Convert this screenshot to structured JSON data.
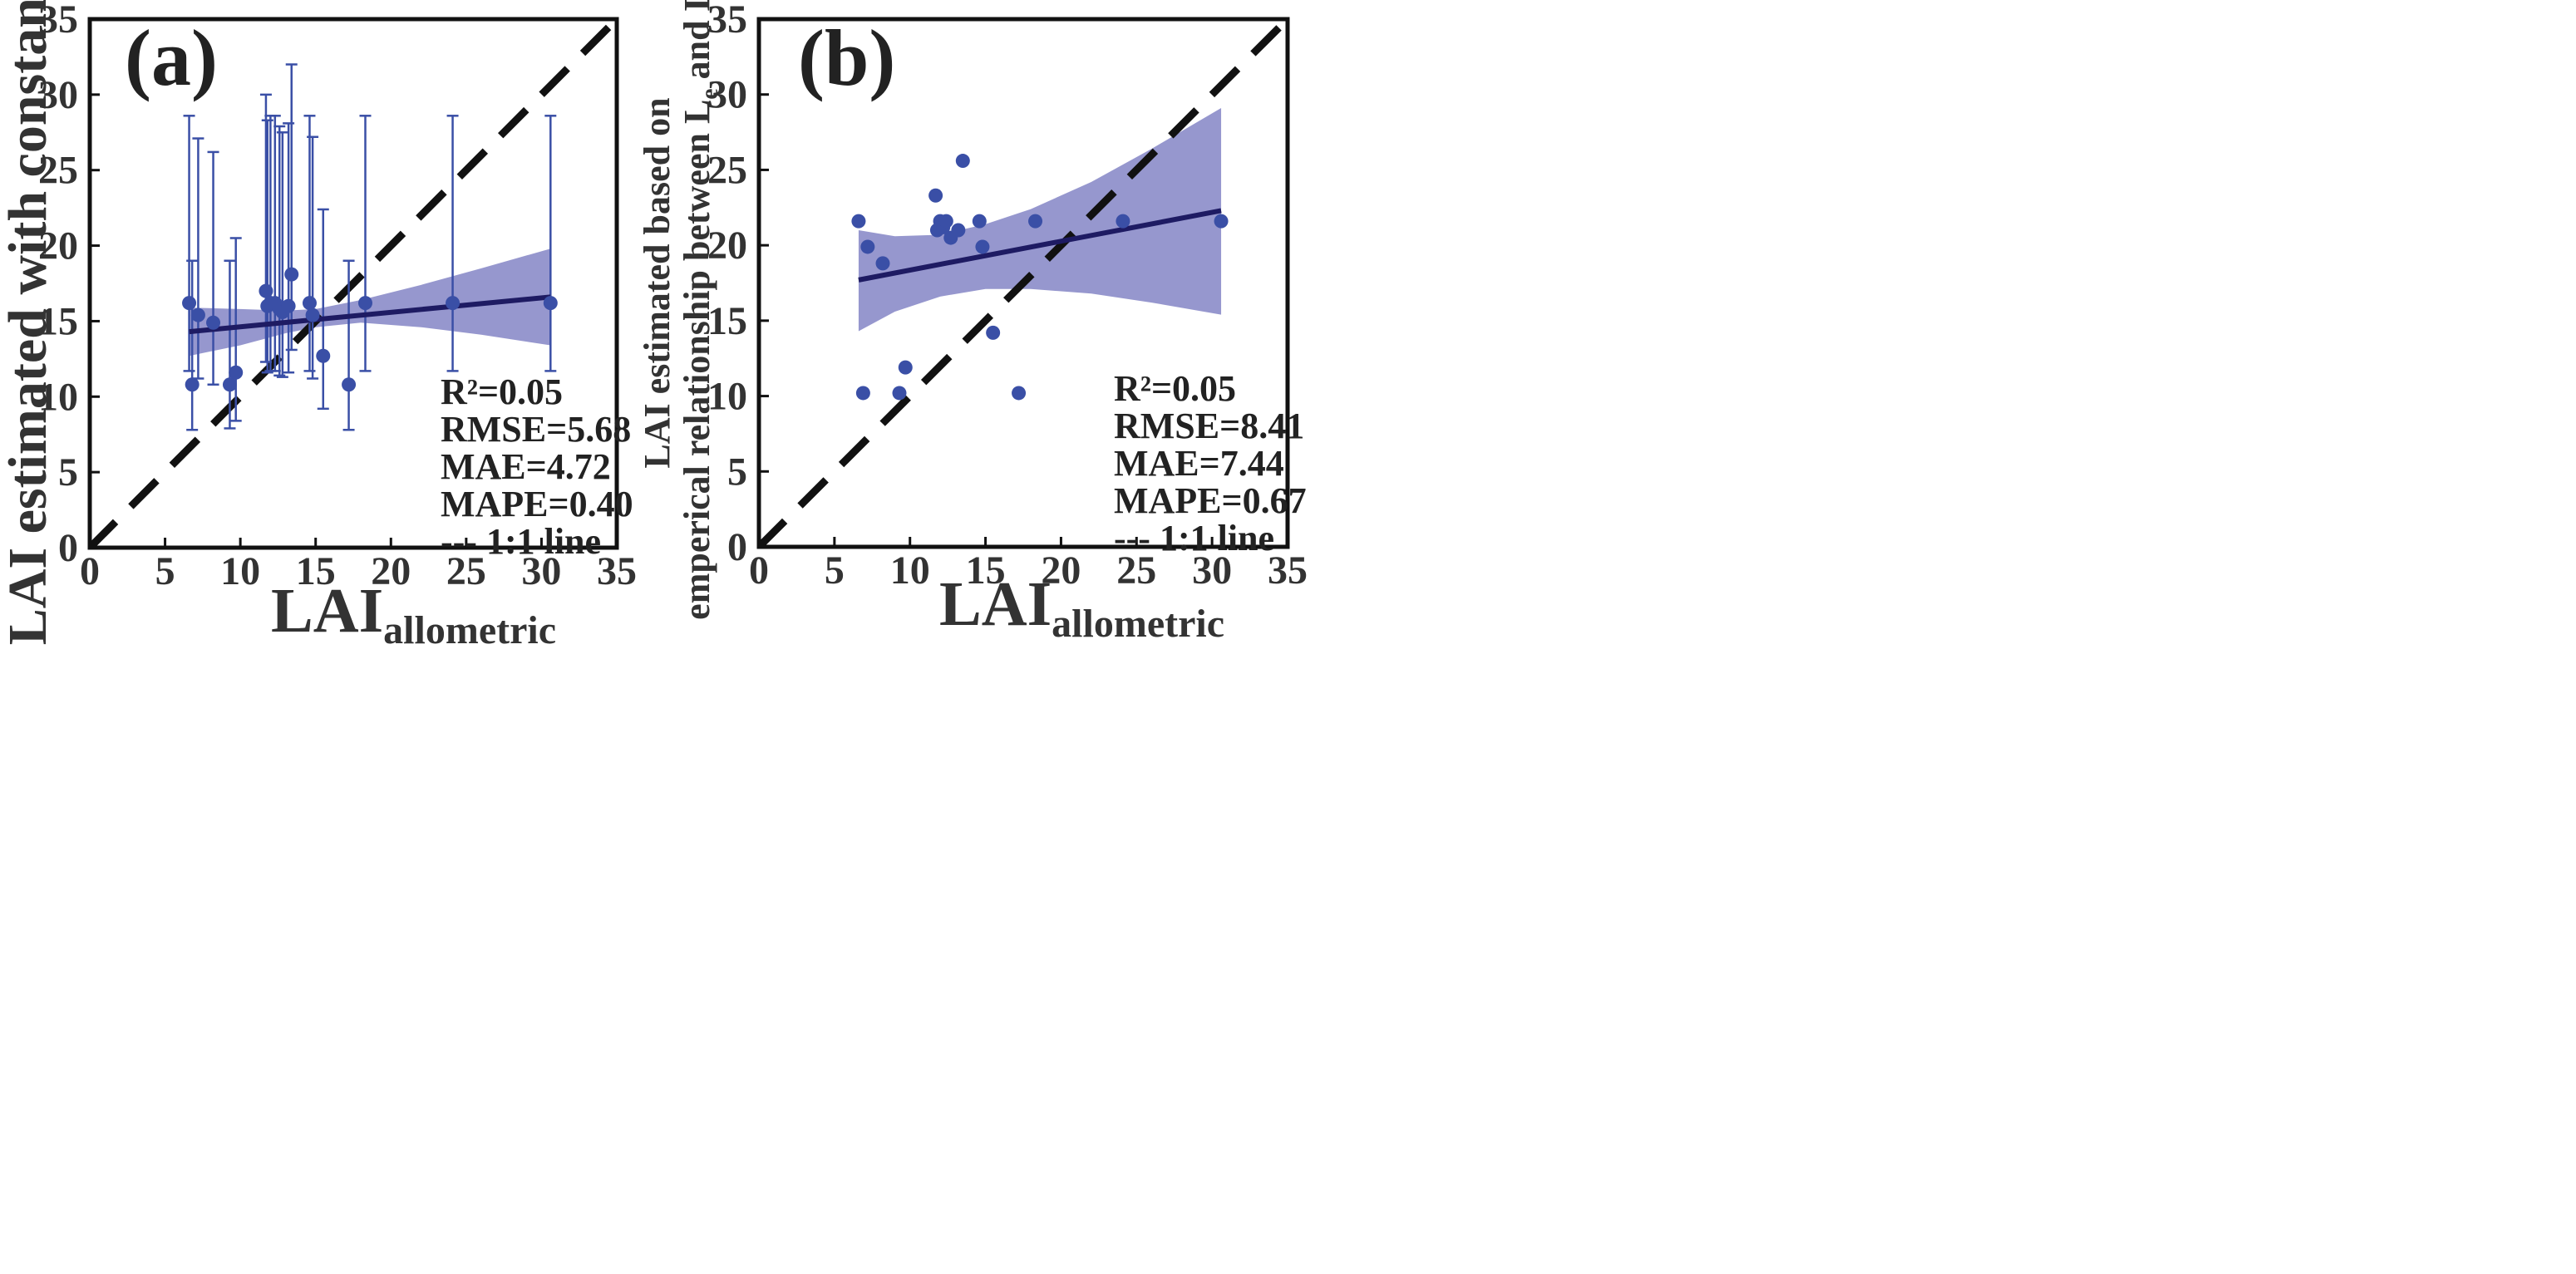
{
  "colors": {
    "point": "#3a4fa6",
    "error_bar": "#3a4fa6",
    "fit_line": "#1e1b63",
    "band": "#8b8cc9",
    "one_to_one": "#111111",
    "frame": "#111111"
  },
  "chart_data": [
    {
      "type": "scatter",
      "panel_label": "(a)",
      "xlabel_main": "LAI",
      "xlabel_sub": "allometric",
      "ylabel_lines": [
        "LAI estimated with constant Ω"
      ],
      "xlim": [
        0,
        35
      ],
      "ylim": [
        0,
        35
      ],
      "xticks": [
        "0",
        "5",
        "10",
        "15",
        "20",
        "25",
        "30",
        "35"
      ],
      "yticks": [
        "0",
        "5",
        "10",
        "15",
        "20",
        "25",
        "30",
        "35"
      ],
      "points": [
        {
          "x": 6.6,
          "y": 16.2,
          "err_low": 11.7,
          "err_high": 28.6
        },
        {
          "x": 6.8,
          "y": 10.8,
          "err_low": 7.8,
          "err_high": 19.0
        },
        {
          "x": 7.2,
          "y": 15.4,
          "err_low": 11.2,
          "err_high": 27.1
        },
        {
          "x": 8.2,
          "y": 14.9,
          "err_low": 10.8,
          "err_high": 26.2
        },
        {
          "x": 9.3,
          "y": 10.8,
          "err_low": 7.9,
          "err_high": 19.0
        },
        {
          "x": 9.7,
          "y": 11.6,
          "err_low": 8.4,
          "err_high": 20.5
        },
        {
          "x": 11.7,
          "y": 17.0,
          "err_low": 12.3,
          "err_high": 30.0
        },
        {
          "x": 11.8,
          "y": 16.0,
          "err_low": 11.6,
          "err_high": 28.3
        },
        {
          "x": 12.0,
          "y": 16.2,
          "err_low": 11.7,
          "err_high": 28.6
        },
        {
          "x": 12.3,
          "y": 16.2,
          "err_low": 11.7,
          "err_high": 28.6
        },
        {
          "x": 12.6,
          "y": 15.8,
          "err_low": 11.4,
          "err_high": 27.9
        },
        {
          "x": 12.8,
          "y": 15.6,
          "err_low": 11.3,
          "err_high": 27.5
        },
        {
          "x": 13.2,
          "y": 16.0,
          "err_low": 11.6,
          "err_high": 28.1
        },
        {
          "x": 13.4,
          "y": 18.1,
          "err_low": 13.1,
          "err_high": 32.0
        },
        {
          "x": 14.6,
          "y": 16.2,
          "err_low": 11.7,
          "err_high": 28.6
        },
        {
          "x": 14.8,
          "y": 15.4,
          "err_low": 11.2,
          "err_high": 27.2
        },
        {
          "x": 15.5,
          "y": 12.7,
          "err_low": 9.2,
          "err_high": 22.4
        },
        {
          "x": 17.2,
          "y": 10.8,
          "err_low": 7.8,
          "err_high": 19.0
        },
        {
          "x": 18.3,
          "y": 16.2,
          "err_low": 11.7,
          "err_high": 28.6
        },
        {
          "x": 24.1,
          "y": 16.2,
          "err_low": 11.7,
          "err_high": 28.6
        },
        {
          "x": 30.6,
          "y": 16.2,
          "err_low": 11.7,
          "err_high": 28.6
        }
      ],
      "fit_line": {
        "x": [
          6.6,
          30.6
        ],
        "y": [
          14.3,
          16.6
        ]
      },
      "confidence_band": {
        "x": [
          6.6,
          10,
          13,
          15,
          18,
          22,
          26,
          30.6
        ],
        "upper": [
          15.9,
          15.8,
          15.7,
          15.8,
          16.4,
          17.4,
          18.5,
          19.8
        ],
        "lower": [
          12.7,
          13.4,
          14.2,
          14.6,
          14.9,
          14.6,
          14.1,
          13.4
        ]
      },
      "one_to_one": {
        "x": [
          0,
          35
        ],
        "y": [
          0,
          35
        ]
      },
      "stats": [
        "R²=0.05",
        "RMSE=5.68",
        "MAE=4.72",
        "MAPE=0.40",
        "--- 1:1 line"
      ]
    },
    {
      "type": "scatter",
      "panel_label": "(b)",
      "xlabel_main": "LAI",
      "xlabel_sub": "allometric",
      "ylabel_lines": [
        "LAI estimated based on",
        "emperical relationship between L",
        "e",
        " and LAI"
      ],
      "xlim": [
        0,
        35
      ],
      "ylim": [
        0,
        35
      ],
      "xticks": [
        "0",
        "5",
        "10",
        "15",
        "20",
        "25",
        "30",
        "35"
      ],
      "yticks": [
        "0",
        "5",
        "10",
        "15",
        "20",
        "25",
        "30",
        "35"
      ],
      "points": [
        {
          "x": 6.6,
          "y": 21.6
        },
        {
          "x": 6.9,
          "y": 10.2
        },
        {
          "x": 7.2,
          "y": 19.9
        },
        {
          "x": 8.2,
          "y": 18.8
        },
        {
          "x": 9.3,
          "y": 10.2
        },
        {
          "x": 9.7,
          "y": 11.9
        },
        {
          "x": 11.7,
          "y": 23.3
        },
        {
          "x": 11.8,
          "y": 21.0
        },
        {
          "x": 12.0,
          "y": 21.6
        },
        {
          "x": 12.2,
          "y": 21.2
        },
        {
          "x": 12.4,
          "y": 21.6
        },
        {
          "x": 12.7,
          "y": 20.5
        },
        {
          "x": 13.2,
          "y": 21.0
        },
        {
          "x": 13.5,
          "y": 25.6
        },
        {
          "x": 14.6,
          "y": 21.6
        },
        {
          "x": 14.8,
          "y": 19.9
        },
        {
          "x": 15.5,
          "y": 14.2
        },
        {
          "x": 17.2,
          "y": 10.2
        },
        {
          "x": 18.3,
          "y": 21.6
        },
        {
          "x": 24.1,
          "y": 21.6
        },
        {
          "x": 30.6,
          "y": 21.6
        }
      ],
      "fit_line": {
        "x": [
          6.6,
          30.6
        ],
        "y": [
          17.7,
          22.3
        ]
      },
      "confidence_band": {
        "x": [
          6.6,
          9,
          12,
          15,
          18,
          22,
          26,
          30.6
        ],
        "upper": [
          21.0,
          20.6,
          20.7,
          21.4,
          22.4,
          24.2,
          26.4,
          29.1
        ],
        "lower": [
          14.3,
          15.6,
          16.6,
          17.1,
          17.1,
          16.8,
          16.2,
          15.4
        ]
      },
      "one_to_one": {
        "x": [
          0,
          35
        ],
        "y": [
          0,
          35
        ]
      },
      "stats": [
        "R²=0.05",
        "RMSE=8.41",
        "MAE=7.44",
        "MAPE=0.67",
        "--- 1:1 line"
      ]
    }
  ]
}
